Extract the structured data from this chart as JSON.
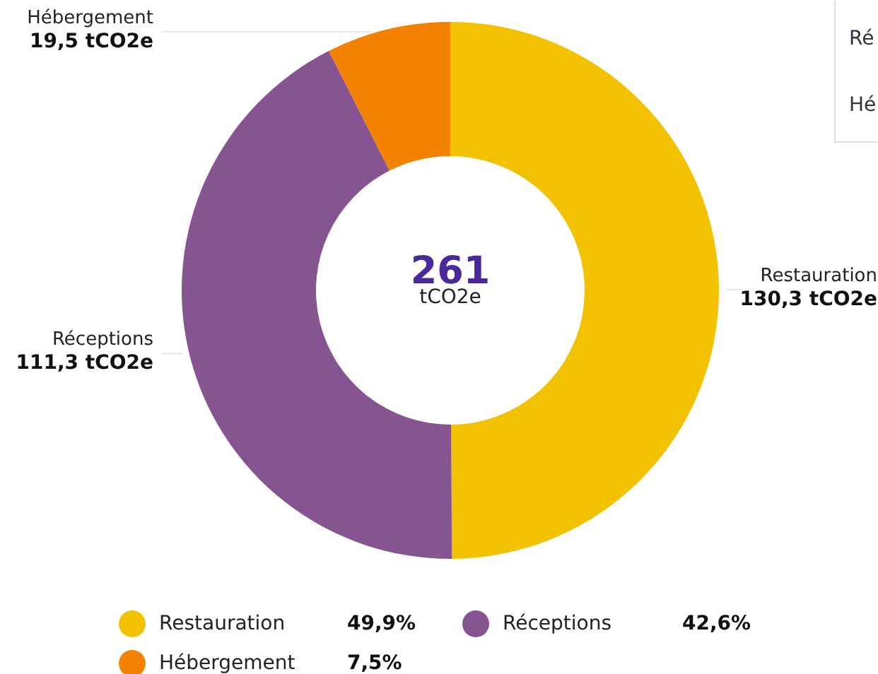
{
  "chart_data": {
    "type": "donut",
    "title": "261",
    "subtitle": "tCO2e",
    "categories": [
      "Restauration",
      "Réceptions",
      "Hébergement"
    ],
    "values": [
      130.3,
      111.3,
      19.5
    ],
    "colors": [
      "#f2c200",
      "#865591",
      "#f28200"
    ],
    "value_labels": [
      "130,3 tCO2e",
      "111,3 tCO2e",
      "19,5 tCO2e"
    ],
    "annotations": [
      "49,9%",
      "42,6%",
      "7,5%",
      "Ré",
      "Hé"
    ],
    "legend": "bottom"
  }
}
